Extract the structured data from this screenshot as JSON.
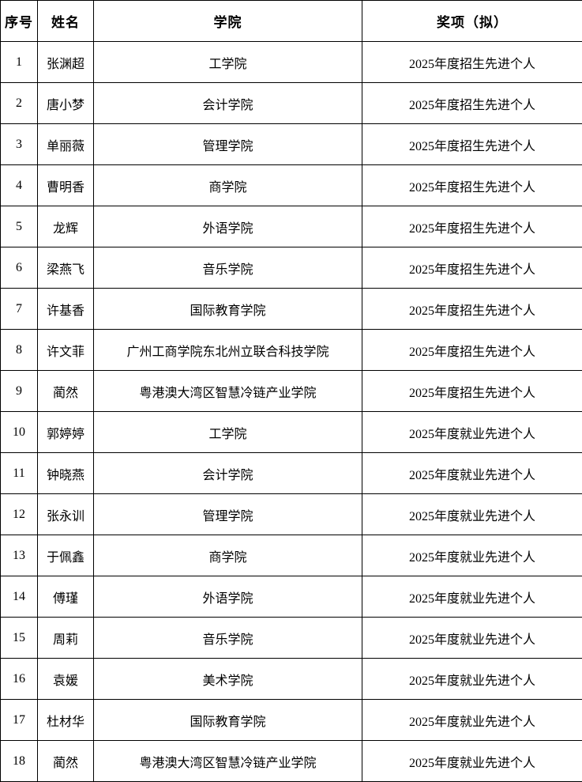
{
  "colors": {
    "background": "#ffffff",
    "text": "#000000",
    "border": "#000000"
  },
  "table": {
    "headers": [
      "序号",
      "姓名",
      "学院",
      "奖项（拟）"
    ],
    "rows": [
      {
        "seq": "1",
        "name": "张渊超",
        "college": "工学院",
        "award": "2025年度招生先进个人"
      },
      {
        "seq": "2",
        "name": "唐小梦",
        "college": "会计学院",
        "award": "2025年度招生先进个人"
      },
      {
        "seq": "3",
        "name": "单丽薇",
        "college": "管理学院",
        "award": "2025年度招生先进个人"
      },
      {
        "seq": "4",
        "name": "曹明香",
        "college": "商学院",
        "award": "2025年度招生先进个人"
      },
      {
        "seq": "5",
        "name": "龙辉",
        "college": "外语学院",
        "award": "2025年度招生先进个人"
      },
      {
        "seq": "6",
        "name": "梁燕飞",
        "college": "音乐学院",
        "award": "2025年度招生先进个人"
      },
      {
        "seq": "7",
        "name": "许基香",
        "college": "国际教育学院",
        "award": "2025年度招生先进个人"
      },
      {
        "seq": "8",
        "name": "许文菲",
        "college": "广州工商学院东北州立联合科技学院",
        "award": "2025年度招生先进个人"
      },
      {
        "seq": "9",
        "name": "蔺然",
        "college": "粤港澳大湾区智慧冷链产业学院",
        "award": "2025年度招生先进个人"
      },
      {
        "seq": "10",
        "name": "郭婷婷",
        "college": "工学院",
        "award": "2025年度就业先进个人"
      },
      {
        "seq": "11",
        "name": "钟晓燕",
        "college": "会计学院",
        "award": "2025年度就业先进个人"
      },
      {
        "seq": "12",
        "name": "张永训",
        "college": "管理学院",
        "award": "2025年度就业先进个人"
      },
      {
        "seq": "13",
        "name": "于佩鑫",
        "college": "商学院",
        "award": "2025年度就业先进个人"
      },
      {
        "seq": "14",
        "name": "傅瑾",
        "college": "外语学院",
        "award": "2025年度就业先进个人"
      },
      {
        "seq": "15",
        "name": "周莉",
        "college": "音乐学院",
        "award": "2025年度就业先进个人"
      },
      {
        "seq": "16",
        "name": "袁媛",
        "college": "美术学院",
        "award": "2025年度就业先进个人"
      },
      {
        "seq": "17",
        "name": "杜材华",
        "college": "国际教育学院",
        "award": "2025年度就业先进个人"
      },
      {
        "seq": "18",
        "name": "蔺然",
        "college": "粤港澳大湾区智慧冷链产业学院",
        "award": "2025年度就业先进个人"
      }
    ]
  }
}
